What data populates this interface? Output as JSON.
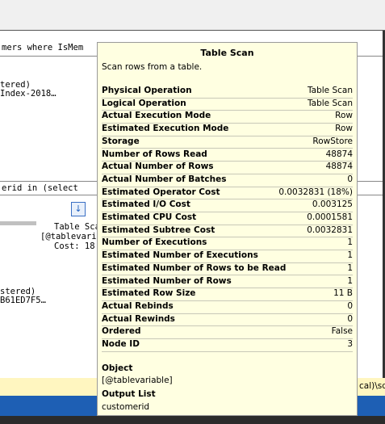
{
  "background": {
    "query_1": "mers where IsMem",
    "plan_1_line_1": "tered)",
    "plan_1_line_2": "Index-2018…",
    "query_2": "erid in (select",
    "operator_name": "Table Sca",
    "operator_object": "[@tablevaris",
    "operator_cost": "Cost: 18",
    "plan_2_line_1": "stered)",
    "plan_2_line_2": "B61ED7F5…",
    "status": "cal)\\sql"
  },
  "tooltip": {
    "title": "Table Scan",
    "description": "Scan rows from a table.",
    "properties": [
      [
        "Physical Operation",
        "Table Scan"
      ],
      [
        "Logical Operation",
        "Table Scan"
      ],
      [
        "Actual Execution Mode",
        "Row"
      ],
      [
        "Estimated Execution Mode",
        "Row"
      ],
      [
        "Storage",
        "RowStore"
      ],
      [
        "Number of Rows Read",
        "48874"
      ],
      [
        "Actual Number of Rows",
        "48874"
      ],
      [
        "Actual Number of Batches",
        "0"
      ],
      [
        "Estimated Operator Cost",
        "0.0032831 (18%)"
      ],
      [
        "Estimated I/O Cost",
        "0.003125"
      ],
      [
        "Estimated CPU Cost",
        "0.0001581"
      ],
      [
        "Estimated Subtree Cost",
        "0.0032831"
      ],
      [
        "Number of Executions",
        "1"
      ],
      [
        "Estimated Number of Executions",
        "1"
      ],
      [
        "Estimated Number of Rows to be Read",
        "1"
      ],
      [
        "Estimated Number of Rows",
        "1"
      ],
      [
        "Estimated Row Size",
        "11 B"
      ],
      [
        "Actual Rebinds",
        "0"
      ],
      [
        "Actual Rewinds",
        "0"
      ],
      [
        "Ordered",
        "False"
      ],
      [
        "Node ID",
        "3"
      ]
    ],
    "object": {
      "heading": "Object",
      "value": "[@tablevariable]"
    },
    "output_list": {
      "heading": "Output List",
      "value": "customerid"
    }
  }
}
